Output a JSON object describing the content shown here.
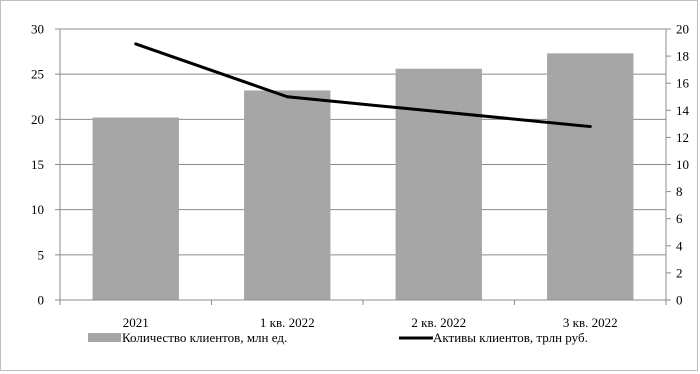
{
  "chart_data": {
    "type": "bar",
    "categories": [
      "2021",
      "1 кв. 2022",
      "2 кв. 2022",
      "3 кв. 2022"
    ],
    "y_left_lim": [
      0,
      30
    ],
    "y_left_ticks": [
      "0",
      "5",
      "10",
      "15",
      "20",
      "25",
      "30"
    ],
    "y_right_lim": [
      0,
      20
    ],
    "y_right_ticks": [
      "0",
      "2",
      "4",
      "6",
      "8",
      "10",
      "12",
      "14",
      "16",
      "18",
      "20"
    ],
    "grid": true,
    "legend_position": "bottom",
    "series": [
      {
        "name": "Количество клиентов, млн ед.",
        "type": "bar",
        "axis": "left",
        "color": "#a6a6a6",
        "values": [
          20.2,
          23.2,
          25.6,
          27.3
        ]
      },
      {
        "name": "Активы клиентов, трлн руб.",
        "type": "line",
        "axis": "right",
        "color": "#000000",
        "values": [
          18.9,
          15.0,
          13.9,
          12.8
        ]
      }
    ]
  }
}
